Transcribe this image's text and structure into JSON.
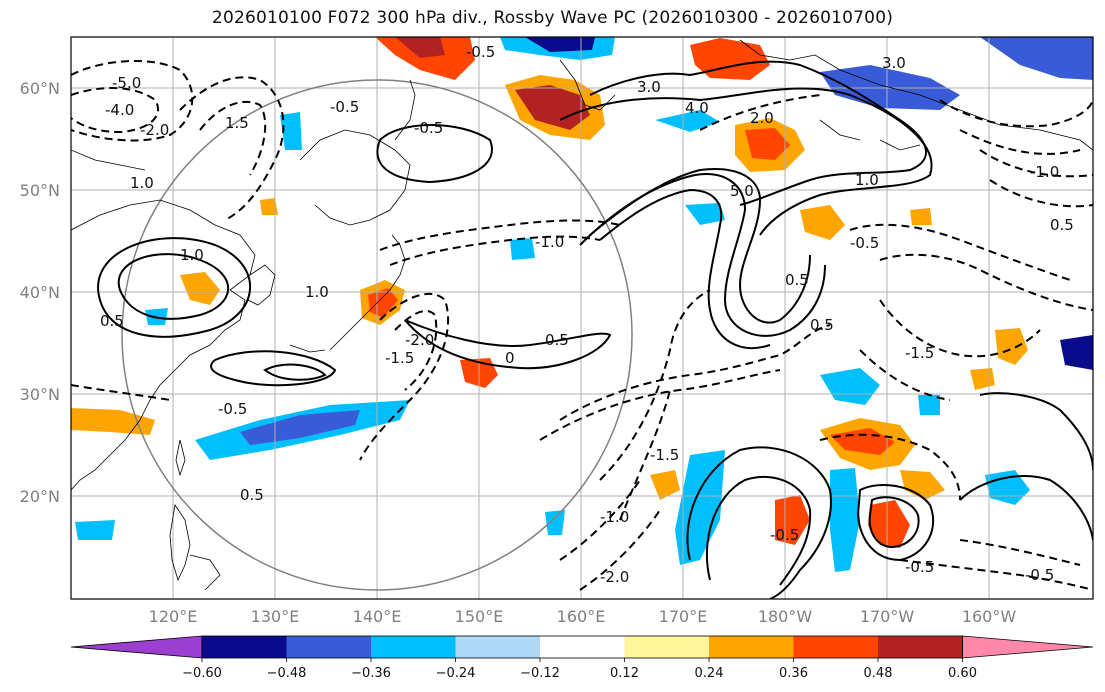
{
  "title": "2026010100 F072 300 hPa div., Rossby Wave PC (2026010300 - 2026010700)",
  "map": {
    "lat_labels": [
      "60°N",
      "50°N",
      "40°N",
      "30°N",
      "20°N"
    ],
    "lon_labels": [
      "120°E",
      "130°E",
      "140°E",
      "150°E",
      "160°E",
      "170°E",
      "180°W",
      "170°W",
      "160°W"
    ],
    "contour_labels": [
      "-0.5",
      "-0.5",
      "-0.5",
      "-0.5",
      "-0.5",
      "-0.5",
      "-0.5",
      "-0.5",
      "-1.0",
      "-1.0",
      "-1.0",
      "-1.5",
      "-1.5",
      "-1.5",
      "-2.0",
      "-2.0",
      "-2.0",
      "-4.0",
      "-5.0",
      "0.5",
      "0.5",
      "0.5",
      "0.5",
      "0.5",
      "0.5",
      "1.0",
      "1.0",
      "1.0",
      "1.0",
      "1.5",
      "2.0",
      "3.0",
      "3.0",
      "4.0",
      "5.0",
      "0"
    ],
    "colors": {
      "continent_line": "#000000",
      "grid": "#b0b0b0",
      "circle": "#808080"
    }
  },
  "colorbar": {
    "ticks": [
      "−0.60",
      "−0.48",
      "−0.36",
      "−0.24",
      "−0.12",
      "0.12",
      "0.24",
      "0.36",
      "0.48",
      "0.60"
    ],
    "colors": [
      "#9b3fd1",
      "#0a0a8c",
      "#3a5bd8",
      "#00bfff",
      "#1e9fe8",
      "#ffffff",
      "#fff59a",
      "#ffa500",
      "#ff4500",
      "#b22222",
      "#ff88aa"
    ]
  }
}
